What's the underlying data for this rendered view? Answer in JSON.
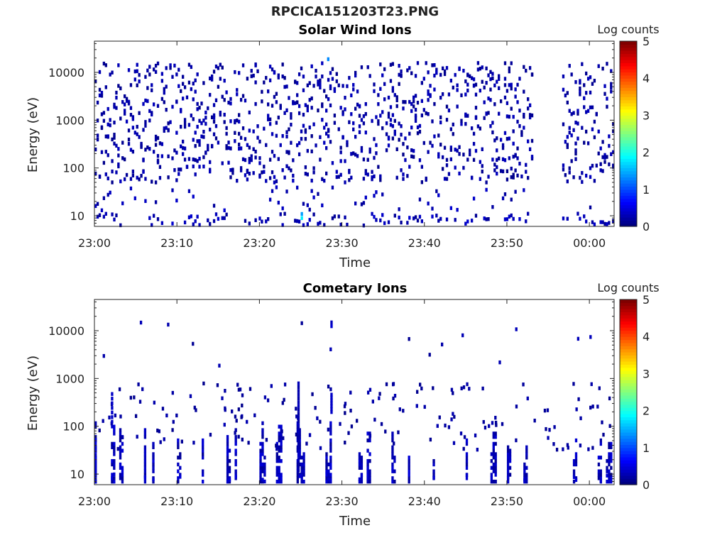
{
  "figure": {
    "title": "RPCICA151203T23.PNG"
  },
  "colors": {
    "colormap": [
      "#000080",
      "#0000ff",
      "#0080ff",
      "#00ffff",
      "#80ff80",
      "#ffff00",
      "#ff8000",
      "#ff0000",
      "#800000"
    ],
    "axis": "#222222"
  },
  "chart_data": [
    {
      "type": "heatmap",
      "title": "Solar Wind Ions",
      "xlabel": "Time",
      "ylabel": "Energy (eV)",
      "x_tick_labels": [
        "23:00",
        "23:10",
        "23:20",
        "23:30",
        "23:40",
        "23:50",
        "00:00"
      ],
      "x_tick_minutes": [
        0,
        10,
        20,
        30,
        40,
        50,
        60
      ],
      "xlim_minutes": [
        0,
        63
      ],
      "y_scale": "log",
      "y_tick_labels": [
        "10",
        "100",
        "1000",
        "10000"
      ],
      "y_tick_values": [
        10,
        100,
        1000,
        10000
      ],
      "ylim": [
        6,
        45000
      ],
      "colorbar": {
        "label": "Log counts",
        "tick_labels": [
          "0",
          "1",
          "2",
          "3",
          "4",
          "5"
        ],
        "range": [
          0,
          5
        ]
      },
      "data_gap_minutes": [
        53,
        56.5
      ],
      "notes_seed": 11,
      "density": {
        "low_energy_counts": "sparse columns 6–40 eV",
        "mid_energy_counts": "scattered 50–20000 eV",
        "max_log_counts": 1.8
      }
    },
    {
      "type": "heatmap",
      "title": "Cometary Ions",
      "xlabel": "Time",
      "ylabel": "Energy (eV)",
      "x_tick_labels": [
        "23:00",
        "23:10",
        "23:20",
        "23:30",
        "23:40",
        "23:50",
        "00:00"
      ],
      "x_tick_minutes": [
        0,
        10,
        20,
        30,
        40,
        50,
        60
      ],
      "xlim_minutes": [
        0,
        63
      ],
      "y_scale": "log",
      "y_tick_labels": [
        "10",
        "100",
        "1000",
        "10000"
      ],
      "y_tick_values": [
        10,
        100,
        1000,
        10000
      ],
      "ylim": [
        6,
        45000
      ],
      "colorbar": {
        "label": "Log counts",
        "tick_labels": [
          "0",
          "1",
          "2",
          "3",
          "4",
          "5"
        ],
        "range": [
          0,
          5
        ]
      },
      "burst_minutes": [
        0,
        2,
        3,
        6,
        7,
        10,
        13,
        16,
        17,
        20,
        22,
        24.5,
        25,
        28,
        32,
        33,
        36,
        38,
        41,
        45,
        48,
        50,
        52,
        58,
        61,
        62
      ],
      "high_energy_events_minutes": [
        1,
        5.5,
        8.8,
        11.8,
        15,
        25,
        28.5,
        38,
        40.5,
        42,
        44.5,
        49,
        51,
        58.5,
        60
      ],
      "max_log_counts": 2.2
    }
  ]
}
